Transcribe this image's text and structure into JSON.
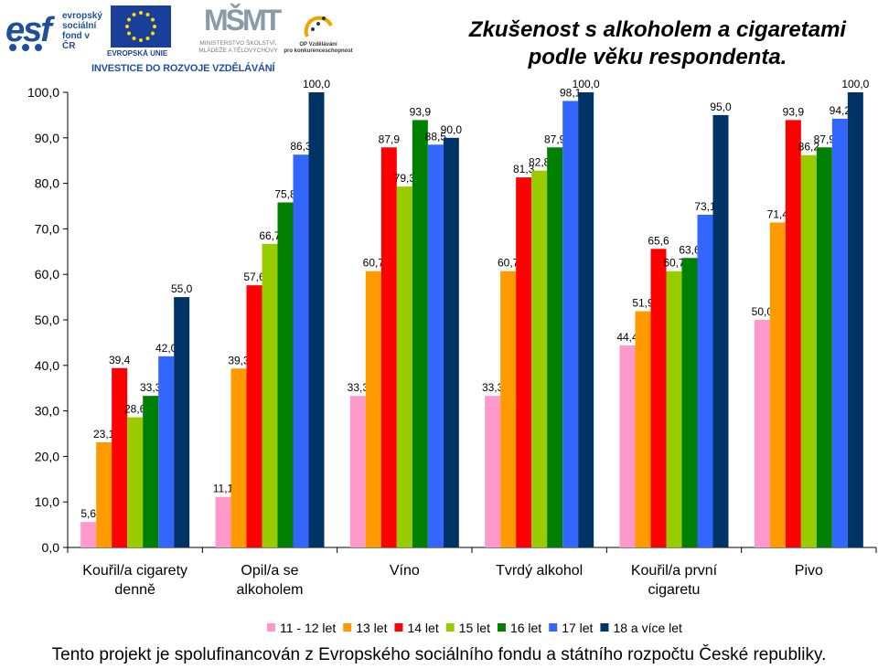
{
  "header": {
    "esf": {
      "mark": "esf",
      "lines": [
        "evropský",
        "sociální",
        "fond v ČR"
      ]
    },
    "eu": {
      "caption": "EVROPSKÁ UNIE"
    },
    "msmt": {
      "mark": "MŠMT",
      "caption_1": "MINISTERSTVO ŠKOLSTVÍ,",
      "caption_2": "MLÁDEŽE A TĚLOVÝCHOVY"
    },
    "op": {
      "caption_1": "OP Vzdělávání",
      "caption_2": "pro konkurenceschopnost"
    },
    "banner": "INVESTICE DO ROZVOJE VZDĚLÁVÁNÍ"
  },
  "footer": {
    "text": "Tento projekt je spolufinancován z Evropského sociálního fondu a státního rozpočtu České republiky."
  },
  "colors": {
    "eu_blue": "#1a3f9b",
    "eu_star": "#ffdd00",
    "esf_blue": "#1d4f9c",
    "op_orange": "#f0a400"
  },
  "chart_data": {
    "type": "bar",
    "title_lines": [
      "Zkušenost s alkoholem a cigaretami",
      "podle věku respondenta."
    ],
    "categories": [
      [
        "Kouřil/a cigarety",
        "denně"
      ],
      [
        "Opil/a se",
        "alkoholem"
      ],
      [
        "Víno"
      ],
      [
        "Tvrdý alkohol"
      ],
      [
        "Kouřil/a první",
        "cigaretu"
      ],
      [
        "Pivo"
      ]
    ],
    "series": [
      {
        "name": "11 - 12 let",
        "color": "#ff99cc",
        "values": [
          5.6,
          11.1,
          33.3,
          33.3,
          44.4,
          50.0
        ]
      },
      {
        "name": "13 let",
        "color": "#ff9900",
        "values": [
          23.1,
          39.3,
          60.7,
          60.7,
          51.9,
          71.4
        ]
      },
      {
        "name": "14 let",
        "color": "#ff0000",
        "values": [
          39.4,
          57.6,
          87.9,
          81.3,
          65.6,
          93.9
        ]
      },
      {
        "name": "15 let",
        "color": "#99cc00",
        "values": [
          28.6,
          66.7,
          79.3,
          82.8,
          60.7,
          86.2
        ]
      },
      {
        "name": "16 let",
        "color": "#008000",
        "values": [
          33.3,
          75.8,
          93.9,
          87.9,
          63.6,
          87.9
        ]
      },
      {
        "name": "17 let",
        "color": "#3366ff",
        "values": [
          42.0,
          86.3,
          88.5,
          98.1,
          73.1,
          94.2
        ]
      },
      {
        "name": "18 a více let",
        "color": "#003366",
        "values": [
          55.0,
          100.0,
          90.0,
          100.0,
          95.0,
          100.0
        ]
      }
    ],
    "ylim": [
      0,
      100
    ],
    "yticks": [
      "0,0",
      "10,0",
      "20,0",
      "30,0",
      "40,0",
      "50,0",
      "60,0",
      "70,0",
      "80,0",
      "90,0",
      "100,0"
    ],
    "data_labels": [
      [
        "5,6",
        "11,1",
        "33,3",
        "33,3",
        "44,4",
        "50,0"
      ],
      [
        "23,1",
        "39,3",
        "60,7",
        "60,7",
        "51,9",
        "71,4"
      ],
      [
        "39,4",
        "57,6",
        "87,9",
        "81,3",
        "65,6",
        "93,9"
      ],
      [
        "28,6",
        "66,7",
        "79,3",
        "82,8",
        "60,7",
        "86,2"
      ],
      [
        "33,3",
        "75,8",
        "93,9",
        "87,9",
        "63,6",
        "87,9"
      ],
      [
        "42,0",
        "86,3",
        "88,5",
        "98,1",
        "73,1",
        "94,2"
      ],
      [
        "55,0",
        "100,0",
        "90,0",
        "100,0",
        "95,0",
        "100,0"
      ]
    ],
    "legend_position": "bottom",
    "grid": false
  }
}
